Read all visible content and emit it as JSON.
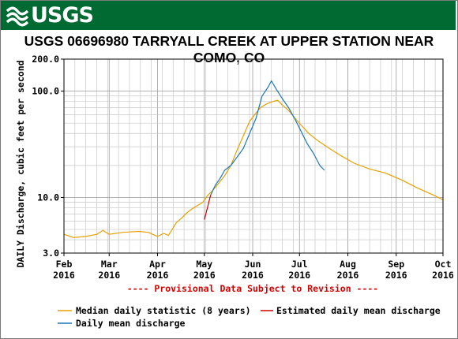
{
  "header": {
    "logo_text": "USGS",
    "title": "USGS 06696980 TARRYALL CREEK AT UPPER STATION NEAR COMO, CO"
  },
  "colors": {
    "banner": "#006a33",
    "median": "#e8a000",
    "daily": "#1a78b8",
    "estimated": "#cc0000",
    "grid": "#c8c8c8",
    "provisional": "#d40000"
  },
  "provisional_note": "---- Provisional Data Subject to Revision ----",
  "legend": {
    "median": "Median daily statistic (8 years)",
    "estimated": "Estimated daily mean discharge",
    "daily": "Daily mean discharge"
  },
  "chart_data": {
    "type": "line",
    "ylabel": "DAILY Discharge, cubic feet per second",
    "yscale": "log",
    "ylim": [
      3.0,
      200.0
    ],
    "yticks": [
      "3.0",
      "10.0",
      "100.0",
      "200.0"
    ],
    "xlim": [
      "2016-02-01",
      "2016-10-01"
    ],
    "xticks": [
      {
        "month": "Feb",
        "year": "2016",
        "date": "2016-02-01"
      },
      {
        "month": "Mar",
        "year": "2016",
        "date": "2016-03-01"
      },
      {
        "month": "Apr",
        "year": "2016",
        "date": "2016-04-01"
      },
      {
        "month": "May",
        "year": "2016",
        "date": "2016-05-01"
      },
      {
        "month": "Jun",
        "year": "2016",
        "date": "2016-06-01"
      },
      {
        "month": "Jul",
        "year": "2016",
        "date": "2016-07-01"
      },
      {
        "month": "Aug",
        "year": "2016",
        "date": "2016-08-01"
      },
      {
        "month": "Sep",
        "year": "2016",
        "date": "2016-09-01"
      },
      {
        "month": "Oct",
        "year": "2016",
        "date": "2016-10-01"
      }
    ],
    "grid": true,
    "series": [
      {
        "name": "Median daily statistic (8 years)",
        "color": "#e8a000",
        "points": [
          [
            "2016-02-01",
            4.5
          ],
          [
            "2016-02-07",
            4.2
          ],
          [
            "2016-02-15",
            4.3
          ],
          [
            "2016-02-22",
            4.5
          ],
          [
            "2016-02-26",
            4.9
          ],
          [
            "2016-03-01",
            4.5
          ],
          [
            "2016-03-10",
            4.7
          ],
          [
            "2016-03-20",
            4.8
          ],
          [
            "2016-03-26",
            4.7
          ],
          [
            "2016-04-01",
            4.3
          ],
          [
            "2016-04-05",
            4.6
          ],
          [
            "2016-04-08",
            4.4
          ],
          [
            "2016-04-10",
            4.9
          ],
          [
            "2016-04-13",
            5.8
          ],
          [
            "2016-04-17",
            6.5
          ],
          [
            "2016-04-20",
            7.2
          ],
          [
            "2016-04-23",
            7.8
          ],
          [
            "2016-04-26",
            8.3
          ],
          [
            "2016-04-30",
            9.0
          ],
          [
            "2016-05-03",
            10.4
          ],
          [
            "2016-05-06",
            11.5
          ],
          [
            "2016-05-10",
            13.5
          ],
          [
            "2016-05-14",
            16.0
          ],
          [
            "2016-05-18",
            20.0
          ],
          [
            "2016-05-22",
            28.0
          ],
          [
            "2016-05-26",
            38.0
          ],
          [
            "2016-05-30",
            52.0
          ],
          [
            "2016-06-03",
            62.0
          ],
          [
            "2016-06-06",
            70.0
          ],
          [
            "2016-06-10",
            76.0
          ],
          [
            "2016-06-14",
            80.0
          ],
          [
            "2016-06-17",
            82.0
          ],
          [
            "2016-06-20",
            74.0
          ],
          [
            "2016-06-24",
            66.0
          ],
          [
            "2016-06-28",
            56.0
          ],
          [
            "2016-07-02",
            48.0
          ],
          [
            "2016-07-07",
            40.0
          ],
          [
            "2016-07-13",
            34.0
          ],
          [
            "2016-07-20",
            29.0
          ],
          [
            "2016-07-27",
            25.0
          ],
          [
            "2016-08-05",
            21.0
          ],
          [
            "2016-08-15",
            18.5
          ],
          [
            "2016-08-25",
            17.0
          ],
          [
            "2016-09-05",
            14.5
          ],
          [
            "2016-09-15",
            12.2
          ],
          [
            "2016-09-25",
            10.5
          ],
          [
            "2016-10-01",
            9.5
          ]
        ]
      },
      {
        "name": "Daily mean discharge",
        "color": "#1a78b8",
        "points": [
          [
            "2016-05-05",
            10.5
          ],
          [
            "2016-05-08",
            13.0
          ],
          [
            "2016-05-11",
            15.0
          ],
          [
            "2016-05-14",
            18.0
          ],
          [
            "2016-05-18",
            20.0
          ],
          [
            "2016-05-22",
            24.0
          ],
          [
            "2016-05-26",
            29.0
          ],
          [
            "2016-05-30",
            40.0
          ],
          [
            "2016-06-03",
            55.0
          ],
          [
            "2016-06-07",
            90.0
          ],
          [
            "2016-06-11",
            110.0
          ],
          [
            "2016-06-13",
            125.0
          ],
          [
            "2016-06-16",
            105.0
          ],
          [
            "2016-06-20",
            85.0
          ],
          [
            "2016-06-24",
            70.0
          ],
          [
            "2016-06-28",
            55.0
          ],
          [
            "2016-07-02",
            42.0
          ],
          [
            "2016-07-06",
            32.0
          ],
          [
            "2016-07-10",
            26.0
          ],
          [
            "2016-07-14",
            20.0
          ],
          [
            "2016-07-17",
            18.0
          ]
        ]
      },
      {
        "name": "Estimated daily mean discharge",
        "color": "#cc0000",
        "points": [
          [
            "2016-05-01",
            6.2
          ],
          [
            "2016-05-03",
            8.0
          ],
          [
            "2016-05-05",
            10.5
          ]
        ]
      }
    ]
  }
}
